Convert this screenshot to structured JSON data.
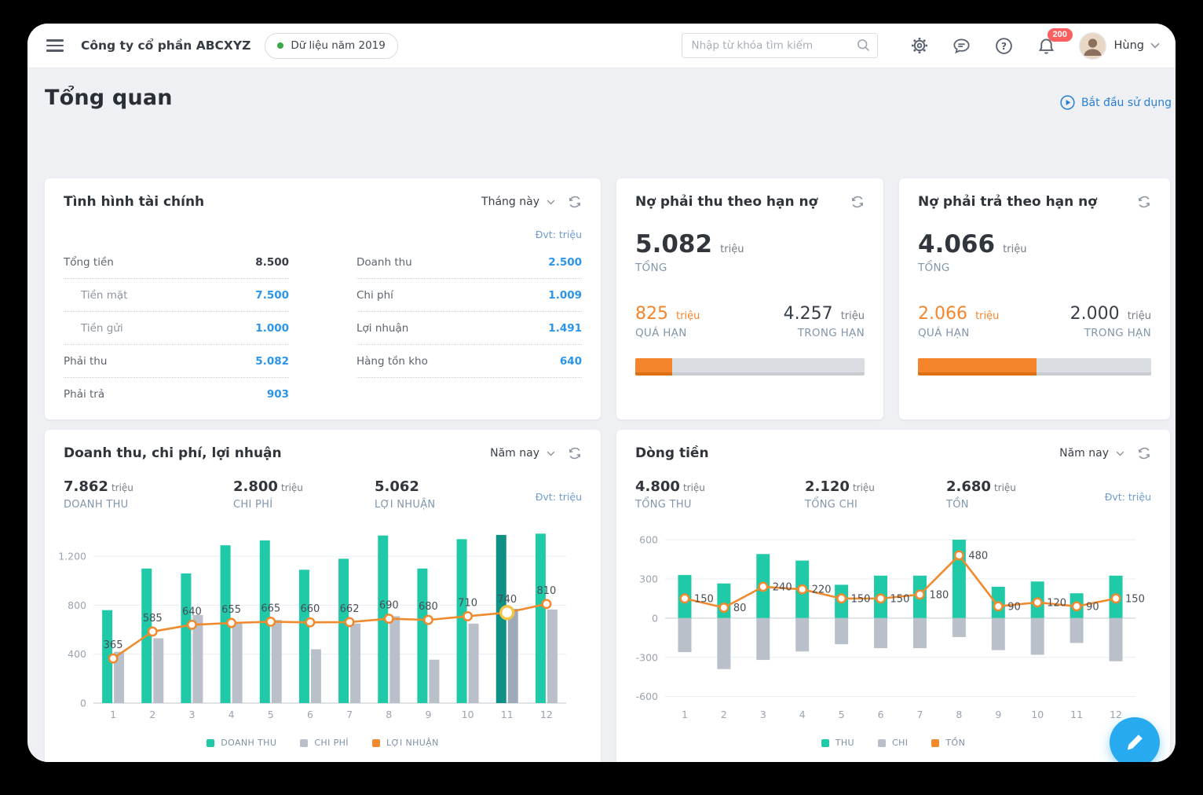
{
  "topbar": {
    "company": "Công ty cổ phần ABCXYZ",
    "data_badge": "Dữ liệu năm 2019",
    "search_placeholder": "Nhập từ khóa tìm kiếm",
    "notification_count": "200",
    "user_name": "Hùng"
  },
  "page": {
    "title": "Tổng quan",
    "start_link": "Bắt đầu sử dụng"
  },
  "finance_card": {
    "title": "Tình hình tài chính",
    "period": "Tháng này",
    "unit": "Đvt: triệu",
    "left_rows": [
      {
        "label": "Tổng tiền",
        "value": "8.500",
        "style": "dark"
      },
      {
        "label": "Tiền mặt",
        "value": "7.500",
        "style": "sub"
      },
      {
        "label": "Tiền gửi",
        "value": "1.000",
        "style": "sub"
      },
      {
        "label": "Phải thu",
        "value": "5.082",
        "style": "normal"
      },
      {
        "label": "Phải trả",
        "value": "903",
        "style": "normal last"
      }
    ],
    "right_rows": [
      {
        "label": "Doanh thu",
        "value": "2.500",
        "style": "normal"
      },
      {
        "label": "Chi phí",
        "value": "1.009",
        "style": "normal"
      },
      {
        "label": "Lợi nhuận",
        "value": "1.491",
        "style": "normal"
      },
      {
        "label": "Hàng tồn kho",
        "value": "640",
        "style": "normal"
      }
    ]
  },
  "receivable_card": {
    "title": "Nợ phải thu theo hạn nợ",
    "total": "5.082",
    "total_unit": "triệu",
    "total_label": "TỔNG",
    "overdue": "825",
    "overdue_unit": "triệu",
    "overdue_label": "QUÁ HẠN",
    "in_term": "4.257",
    "in_term_unit": "triệu",
    "in_term_label": "TRONG HẠN",
    "overdue_pct": 16.2
  },
  "payable_card": {
    "title": "Nợ phải trả theo hạn nợ",
    "total": "4.066",
    "total_unit": "triệu",
    "total_label": "TỔNG",
    "overdue": "2.066",
    "overdue_unit": "triệu",
    "overdue_label": "QUÁ HẠN",
    "in_term": "2.000",
    "in_term_unit": "triệu",
    "in_term_label": "TRONG HẠN",
    "overdue_pct": 50.8
  },
  "chart_data": [
    {
      "type": "bar",
      "title": "Doanh thu, chi phí, lợi nhuận",
      "period": "Năm nay",
      "unit_note": "Đvt: triệu",
      "stats": [
        {
          "value": "7.862",
          "unit": "triệu",
          "label": "DOANH THU"
        },
        {
          "value": "2.800",
          "unit": "triệu",
          "label": "CHI PHÍ"
        },
        {
          "value": "5.062",
          "unit": "",
          "label": "LỢI NHUẬN"
        }
      ],
      "categories": [
        "1",
        "2",
        "3",
        "4",
        "5",
        "6",
        "7",
        "8",
        "9",
        "10",
        "11",
        "12"
      ],
      "series": [
        {
          "name": "DOANH THU",
          "type": "bar",
          "color": "#20c9a7",
          "highlight_color": "#0e9184",
          "values": [
            760,
            1100,
            1060,
            1290,
            1330,
            1090,
            1180,
            1370,
            1100,
            1340,
            1375,
            1385
          ]
        },
        {
          "name": "CHI PHÍ",
          "type": "bar",
          "color": "#b9c0c9",
          "highlight_color": "#9eaaba",
          "values": [
            420,
            530,
            720,
            655,
            680,
            440,
            650,
            710,
            355,
            650,
            770,
            765
          ]
        },
        {
          "name": "LỢI NHUẬN",
          "type": "line",
          "color": "#f08a2e",
          "values": [
            365,
            585,
            640,
            655,
            665,
            660,
            662,
            690,
            680,
            710,
            740,
            810
          ]
        }
      ],
      "ylim": [
        0,
        1400
      ],
      "yticks": [
        {
          "v": 0,
          "label": "0"
        },
        {
          "v": 400,
          "label": "400"
        },
        {
          "v": 800,
          "label": "800"
        },
        {
          "v": 1200,
          "label": "1.200"
        }
      ],
      "bar_layout": "pair",
      "highlight_index": 10,
      "label_pos": "above",
      "legend_position": "bottom-center",
      "grid": true
    },
    {
      "type": "bar",
      "title": "Dòng tiền",
      "period": "Năm nay",
      "unit_note": "Đvt: triệu",
      "stats": [
        {
          "value": "4.800",
          "unit": "triệu",
          "label": "TỔNG THU"
        },
        {
          "value": "2.120",
          "unit": "triệu",
          "label": "TỔNG CHI"
        },
        {
          "value": "2.680",
          "unit": "triệu",
          "label": "TỒN"
        }
      ],
      "categories": [
        "1",
        "2",
        "3",
        "4",
        "5",
        "6",
        "7",
        "8",
        "9",
        "10",
        "11",
        "12"
      ],
      "series": [
        {
          "name": "THU",
          "type": "bar",
          "color": "#20c9a7",
          "values": [
            330,
            265,
            490,
            440,
            255,
            325,
            325,
            600,
            240,
            280,
            190,
            325
          ]
        },
        {
          "name": "CHI",
          "type": "bar",
          "color": "#b9c0c9",
          "values": [
            -260,
            -390,
            -320,
            -255,
            -200,
            -230,
            -230,
            -145,
            -245,
            -280,
            -190,
            -330
          ]
        },
        {
          "name": "TỒN",
          "type": "line",
          "color": "#f08a2e",
          "values": [
            150,
            80,
            240,
            220,
            150,
            150,
            180,
            480,
            90,
            120,
            90,
            150
          ]
        }
      ],
      "ylim": [
        -650,
        660
      ],
      "yticks": [
        {
          "v": -600,
          "label": "-600"
        },
        {
          "v": -300,
          "label": "-300"
        },
        {
          "v": 0,
          "label": "0"
        },
        {
          "v": 300,
          "label": "300"
        },
        {
          "v": 600,
          "label": "600"
        }
      ],
      "bar_layout": "split",
      "highlight_index": -1,
      "label_pos": "right",
      "legend_position": "bottom-center",
      "grid": true
    }
  ],
  "colors": {
    "teal": "#20c9a7",
    "teal_highlight": "#0e9184",
    "gray_bar": "#b9c0c9",
    "orange": "#f5852c",
    "blue_value": "#2b95e9",
    "link_blue": "#2a7fd4",
    "fab_blue": "#28aaf0",
    "badge_red": "#f95f5f",
    "green_dot": "#3aa845"
  }
}
